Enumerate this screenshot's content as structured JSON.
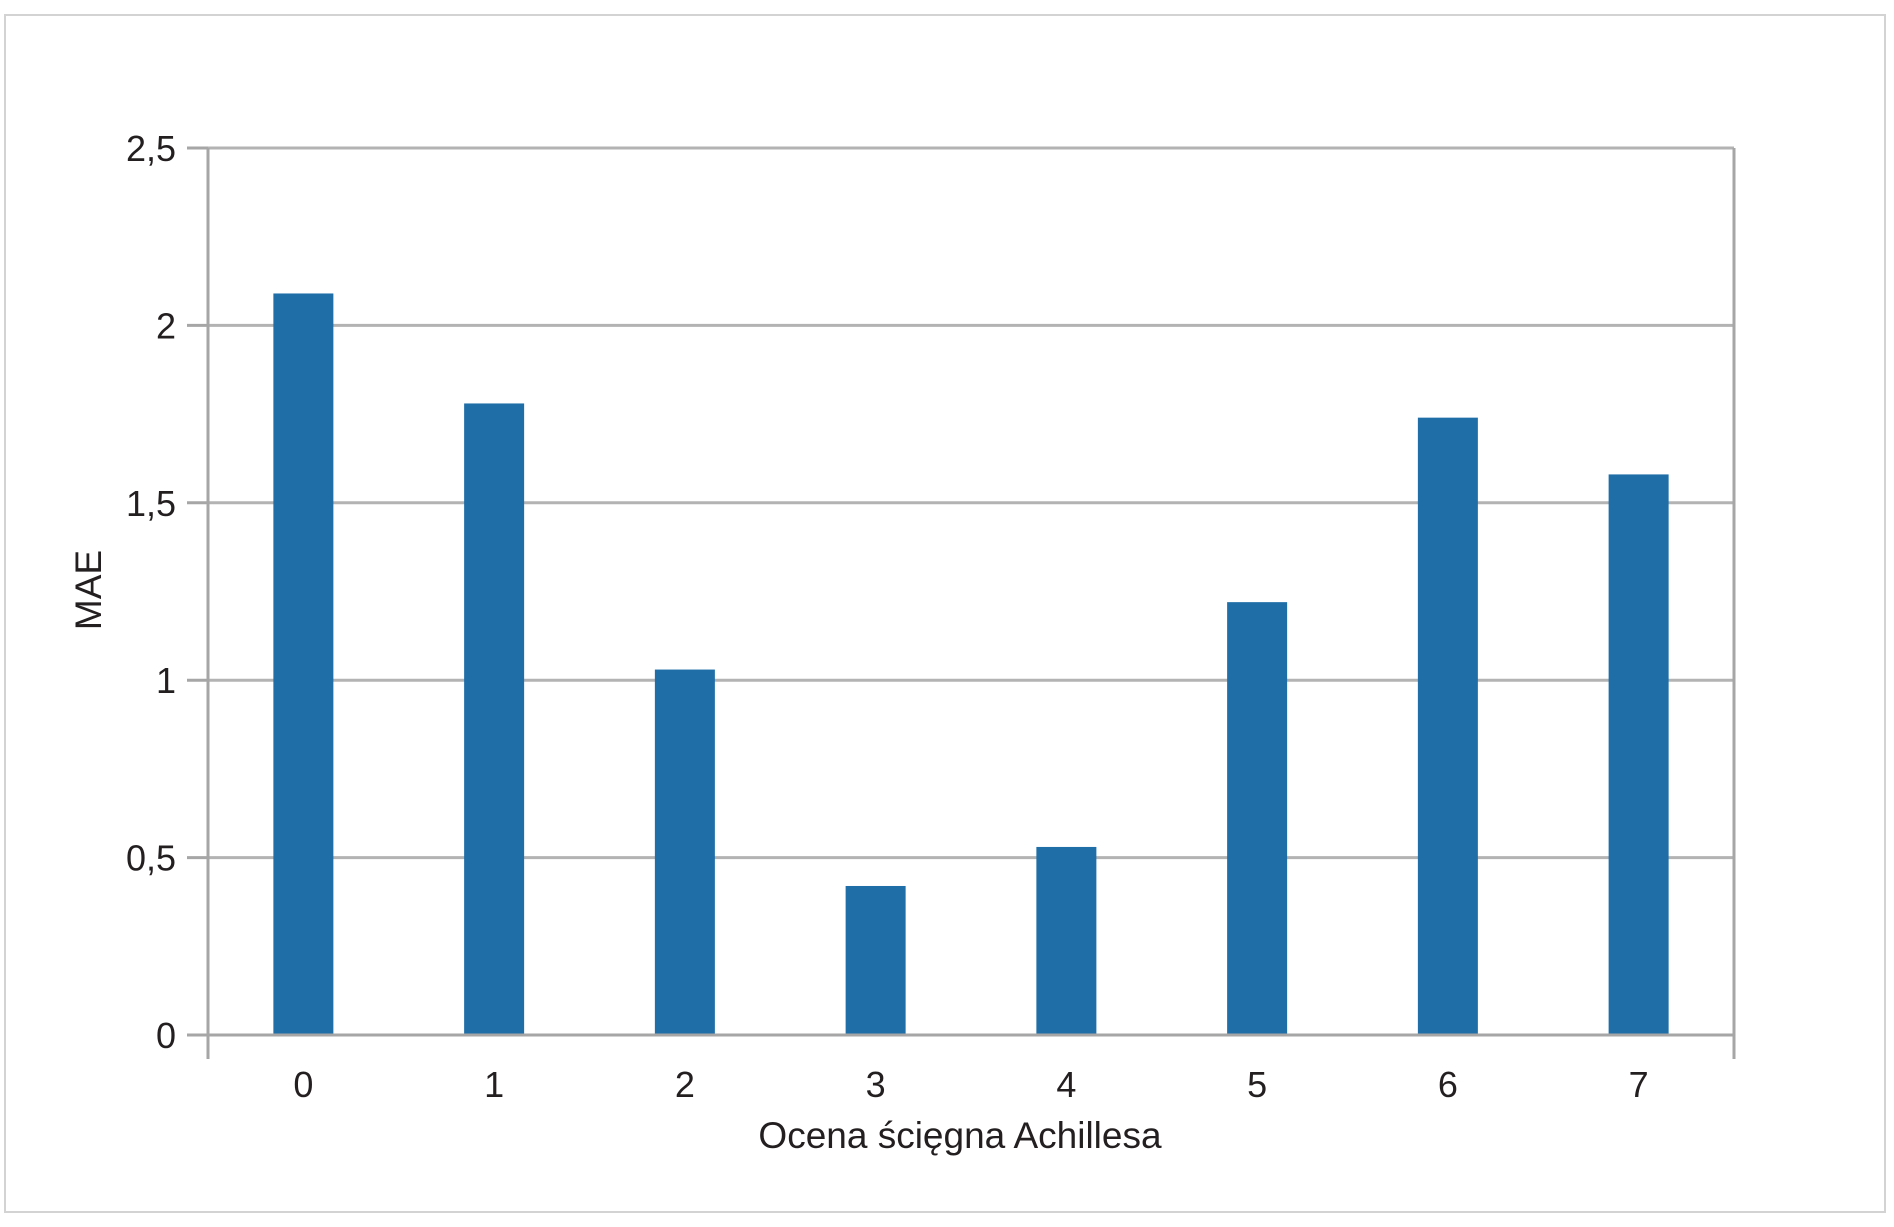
{
  "chart_data": {
    "type": "bar",
    "title": "",
    "xlabel": "Ocena ścięgna Achillesa",
    "ylabel": "MAE",
    "categories": [
      "0",
      "1",
      "2",
      "3",
      "4",
      "5",
      "6",
      "7"
    ],
    "values": [
      2.09,
      1.78,
      1.03,
      0.42,
      0.53,
      1.22,
      1.74,
      1.58
    ],
    "ylim": [
      0,
      2.5
    ],
    "yticks": [
      0,
      0.5,
      1,
      1.5,
      2,
      2.5
    ],
    "ytick_labels": [
      "0",
      "0,5",
      "1",
      "1,5",
      "2",
      "2,5"
    ],
    "grid": true,
    "legend": "none",
    "colors": {
      "bar": "#1f6ea8",
      "grid": "#b3b3b3",
      "axis": "#a6a6a6",
      "text": "#231f20"
    }
  }
}
